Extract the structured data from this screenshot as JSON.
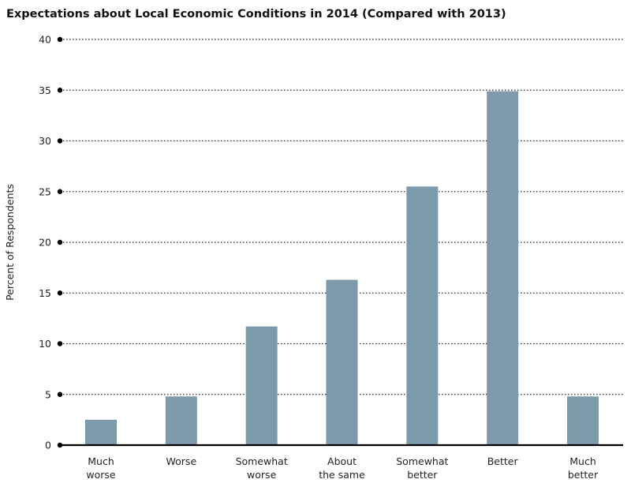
{
  "chart_data": {
    "type": "bar",
    "title": "Expectations about Local Economic Conditions in 2014 (Compared with 2013)",
    "xlabel": "",
    "ylabel": "Percent of Respondents",
    "categories": [
      [
        "Much",
        "worse"
      ],
      [
        "Worse"
      ],
      [
        "Somewhat",
        "worse"
      ],
      [
        "About",
        "the same"
      ],
      [
        "Somewhat",
        "better"
      ],
      [
        "Better"
      ],
      [
        "Much",
        "better"
      ]
    ],
    "values": [
      2.5,
      4.8,
      11.7,
      16.3,
      25.5,
      34.9,
      4.8
    ],
    "ylim": [
      0,
      40
    ],
    "yticks": [
      0,
      5,
      10,
      15,
      20,
      25,
      30,
      35,
      40
    ],
    "grid": true,
    "legend": "none"
  },
  "colors": {
    "bar": "#7c9aaa",
    "gridline": "#222222",
    "axis": "#000000"
  }
}
